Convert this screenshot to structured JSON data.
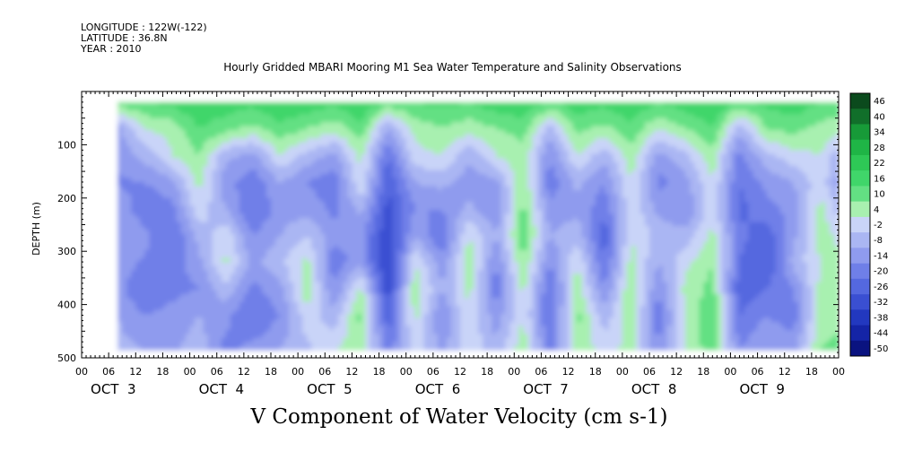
{
  "header": {
    "longitude": "LONGITUDE : 122W(-122)",
    "latitude": "LATITUDE : 36.8N",
    "year": "YEAR : 2010"
  },
  "chart_data": {
    "type": "heatmap",
    "title": "Hourly Gridded MBARI Mooring M1 Sea Water Temperature and Salinity Observations",
    "xlabel": "V Component of Water Velocity (cm s-1)",
    "ylabel": "DEPTH (m)",
    "ylim": [
      500,
      0
    ],
    "y_ticks": [
      100,
      200,
      300,
      400,
      500
    ],
    "x_hour_ticks": [
      "00",
      "06",
      "12",
      "18",
      "00",
      "06",
      "12",
      "18",
      "00",
      "06",
      "12",
      "18",
      "00",
      "06",
      "12",
      "18",
      "00",
      "06",
      "12",
      "18",
      "00",
      "06",
      "12",
      "18",
      "00",
      "06",
      "12",
      "18",
      "00"
    ],
    "x_day_labels": [
      "OCT  3",
      "OCT  4",
      "OCT  5",
      "OCT  6",
      "OCT  7",
      "OCT  8",
      "OCT  9"
    ],
    "data_depth_range": [
      20,
      485
    ],
    "data_time_range_hours": [
      8,
      168
    ],
    "colorbar_labels": [
      "46",
      "40",
      "34",
      "28",
      "22",
      "16",
      "10",
      "4",
      "-2",
      "-8",
      "-14",
      "-20",
      "-26",
      "-32",
      "-38",
      "-44",
      "-50"
    ],
    "colorbar_colors": [
      "#0b4a1d",
      "#116f2a",
      "#179a38",
      "#1fb546",
      "#2ec856",
      "#40d66a",
      "#63e083",
      "#a8f0b0",
      "#c9d4f8",
      "#aab6f3",
      "#8f9bee",
      "#6f7fe8",
      "#5468df",
      "#3a4fd2",
      "#2238bf",
      "#1424a6",
      "#0a1380"
    ],
    "profiles": [
      {
        "t": 8,
        "v": [
          14,
          -10,
          -12,
          -15,
          -10,
          -8,
          -10,
          -12,
          -8,
          -6
        ]
      },
      {
        "t": 14,
        "v": [
          16,
          4,
          -6,
          -14,
          -18,
          -12,
          -15,
          -20,
          -14,
          -8
        ]
      },
      {
        "t": 20,
        "v": [
          18,
          6,
          4,
          -10,
          -16,
          -20,
          -18,
          -16,
          -12,
          -10
        ]
      },
      {
        "t": 26,
        "v": [
          22,
          16,
          10,
          6,
          2,
          -6,
          -10,
          -14,
          -8,
          -4
        ]
      },
      {
        "t": 32,
        "v": [
          20,
          12,
          -6,
          -12,
          -8,
          2,
          6,
          -4,
          -12,
          -16
        ]
      },
      {
        "t": 38,
        "v": [
          18,
          8,
          -10,
          -18,
          -20,
          -14,
          -10,
          -16,
          -20,
          -12
        ]
      },
      {
        "t": 44,
        "v": [
          22,
          14,
          4,
          -8,
          -12,
          -8,
          -4,
          -10,
          -14,
          -8
        ]
      },
      {
        "t": 50,
        "v": [
          20,
          10,
          -4,
          -14,
          -10,
          -2,
          6,
          8,
          2,
          -4
        ]
      },
      {
        "t": 56,
        "v": [
          18,
          6,
          -10,
          -18,
          -16,
          -12,
          -18,
          -14,
          -6,
          4
        ]
      },
      {
        "t": 62,
        "v": [
          22,
          14,
          6,
          4,
          -6,
          -12,
          -10,
          6,
          12,
          8
        ]
      },
      {
        "t": 68,
        "v": [
          14,
          -8,
          -20,
          -26,
          -28,
          -32,
          -34,
          -30,
          -24,
          -18
        ]
      },
      {
        "t": 74,
        "v": [
          16,
          6,
          2,
          -8,
          -14,
          -8,
          4,
          8,
          6,
          2
        ]
      },
      {
        "t": 80,
        "v": [
          18,
          10,
          4,
          -6,
          -14,
          -20,
          -12,
          -8,
          -14,
          -10
        ]
      },
      {
        "t": 86,
        "v": [
          16,
          6,
          -6,
          -12,
          -6,
          4,
          8,
          6,
          4,
          2
        ]
      },
      {
        "t": 92,
        "v": [
          20,
          10,
          4,
          -10,
          -14,
          -8,
          -14,
          -18,
          -12,
          -6
        ]
      },
      {
        "t": 98,
        "v": [
          22,
          12,
          8,
          10,
          12,
          14,
          10,
          6,
          4,
          8
        ]
      },
      {
        "t": 104,
        "v": [
          14,
          -4,
          -14,
          -18,
          -12,
          -8,
          -14,
          -20,
          -22,
          -16
        ]
      },
      {
        "t": 110,
        "v": [
          20,
          12,
          4,
          -6,
          -10,
          -4,
          4,
          8,
          12,
          8
        ]
      },
      {
        "t": 116,
        "v": [
          18,
          8,
          -6,
          -14,
          -18,
          -24,
          -20,
          -14,
          -6,
          2
        ]
      },
      {
        "t": 122,
        "v": [
          22,
          14,
          8,
          4,
          2,
          4,
          6,
          10,
          8,
          6
        ]
      },
      {
        "t": 128,
        "v": [
          16,
          4,
          -10,
          -16,
          -10,
          -4,
          -8,
          -14,
          -18,
          -14
        ]
      },
      {
        "t": 134,
        "v": [
          20,
          10,
          -4,
          -10,
          -14,
          -6,
          2,
          6,
          4,
          4
        ]
      },
      {
        "t": 140,
        "v": [
          22,
          16,
          8,
          4,
          2,
          6,
          10,
          12,
          16,
          14
        ]
      },
      {
        "t": 146,
        "v": [
          14,
          -6,
          -16,
          -20,
          -22,
          -18,
          -20,
          -24,
          -20,
          -14
        ]
      },
      {
        "t": 152,
        "v": [
          18,
          10,
          -4,
          -12,
          -16,
          -24,
          -26,
          -20,
          -14,
          -8
        ]
      },
      {
        "t": 158,
        "v": [
          20,
          12,
          2,
          -8,
          -12,
          -10,
          -6,
          -14,
          -18,
          -10
        ]
      },
      {
        "t": 164,
        "v": [
          16,
          8,
          4,
          2,
          6,
          8,
          4,
          6,
          8,
          10
        ]
      },
      {
        "t": 168,
        "v": [
          14,
          6,
          -6,
          -10,
          -4,
          2,
          6,
          4,
          8,
          12
        ]
      }
    ],
    "profile_depths": [
      20,
      70,
      120,
      170,
      220,
      270,
      320,
      370,
      420,
      485
    ]
  }
}
